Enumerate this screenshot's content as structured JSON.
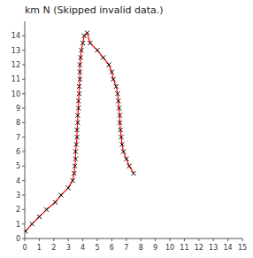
{
  "chart_data": {
    "type": "line",
    "title": "km N (Skipped invalid data.)",
    "x": [
      0.05,
      0.5,
      1.0,
      1.5,
      2.1,
      2.5,
      3.0,
      3.3,
      3.4,
      3.45,
      3.5,
      3.5,
      3.55,
      3.6,
      3.6,
      3.65,
      3.65,
      3.7,
      3.7,
      3.75,
      3.75,
      3.8,
      3.8,
      3.8,
      3.85,
      3.9,
      4.0,
      4.1,
      4.3,
      4.5,
      5.0,
      5.4,
      5.8,
      6.0,
      6.1,
      6.3,
      6.4,
      6.45,
      6.5,
      6.55,
      6.55,
      6.6,
      6.65,
      6.7,
      6.8,
      7.0,
      7.2,
      7.5
    ],
    "values": [
      0.5,
      1.0,
      1.5,
      2.0,
      2.5,
      3.0,
      3.5,
      4.0,
      4.5,
      5.0,
      5.5,
      6.0,
      6.5,
      7.0,
      7.5,
      8.0,
      8.5,
      9.0,
      9.5,
      10.0,
      10.5,
      11.0,
      11.5,
      12.0,
      12.5,
      13.0,
      13.5,
      14.0,
      14.2,
      13.5,
      13.0,
      12.5,
      12.0,
      11.5,
      11.0,
      10.5,
      10.0,
      9.5,
      9.0,
      8.5,
      8.0,
      7.5,
      7.0,
      6.5,
      6.0,
      5.5,
      5.0,
      4.5
    ],
    "color": "#ff0000",
    "marker": "x",
    "xlim": [
      0,
      15
    ],
    "ylim": [
      0,
      15
    ],
    "xticks": [
      0,
      1,
      2,
      3,
      4,
      5,
      6,
      7,
      8,
      9,
      10,
      11,
      12,
      13,
      14,
      15
    ],
    "yticks": [
      0,
      1,
      2,
      3,
      4,
      5,
      6,
      7,
      8,
      9,
      10,
      11,
      12,
      13,
      14
    ]
  }
}
